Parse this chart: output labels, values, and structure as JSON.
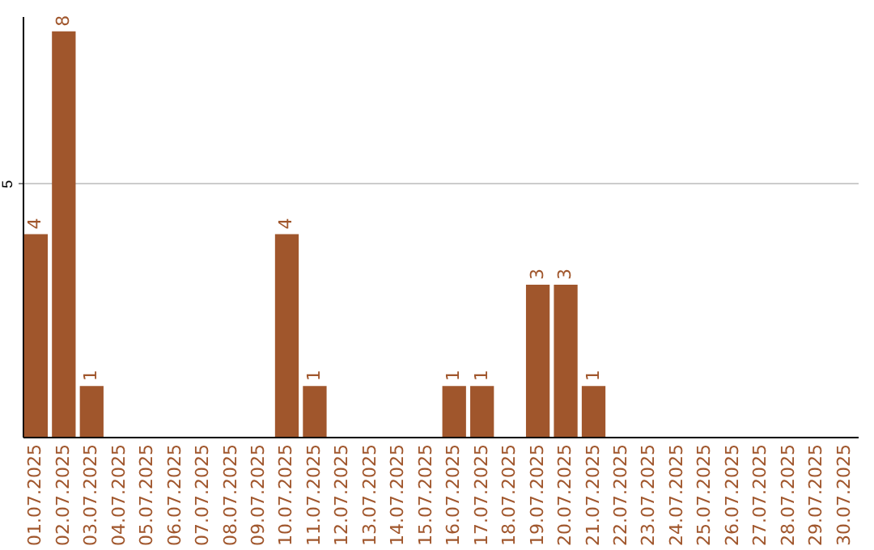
{
  "chart_data": {
    "type": "bar",
    "categories": [
      "01.07.2025",
      "02.07.2025",
      "03.07.2025",
      "04.07.2025",
      "05.07.2025",
      "06.07.2025",
      "07.07.2025",
      "08.07.2025",
      "09.07.2025",
      "10.07.2025",
      "11.07.2025",
      "12.07.2025",
      "13.07.2025",
      "14.07.2025",
      "15.07.2025",
      "16.07.2025",
      "17.07.2025",
      "18.07.2025",
      "19.07.2025",
      "20.07.2025",
      "21.07.2025",
      "22.07.2025",
      "23.07.2025",
      "24.07.2025",
      "25.07.2025",
      "26.07.2025",
      "27.07.2025",
      "28.07.2025",
      "29.07.2025",
      "30.07.2025"
    ],
    "values": [
      4,
      8,
      1,
      0,
      0,
      0,
      0,
      0,
      0,
      4,
      1,
      0,
      0,
      0,
      0,
      1,
      1,
      0,
      3,
      3,
      1,
      0,
      0,
      0,
      0,
      0,
      0,
      0,
      0,
      0
    ],
    "value_labels": [
      "4",
      "8",
      "1",
      null,
      null,
      null,
      null,
      null,
      null,
      "4",
      "1",
      null,
      null,
      null,
      null,
      "1",
      "1",
      null,
      "3",
      "3",
      "1",
      null,
      null,
      null,
      null,
      null,
      null,
      null,
      null,
      null
    ],
    "color": "#a0562c",
    "ylim": [
      0,
      8.3
    ],
    "yticks": [
      5
    ],
    "grid": "y"
  }
}
